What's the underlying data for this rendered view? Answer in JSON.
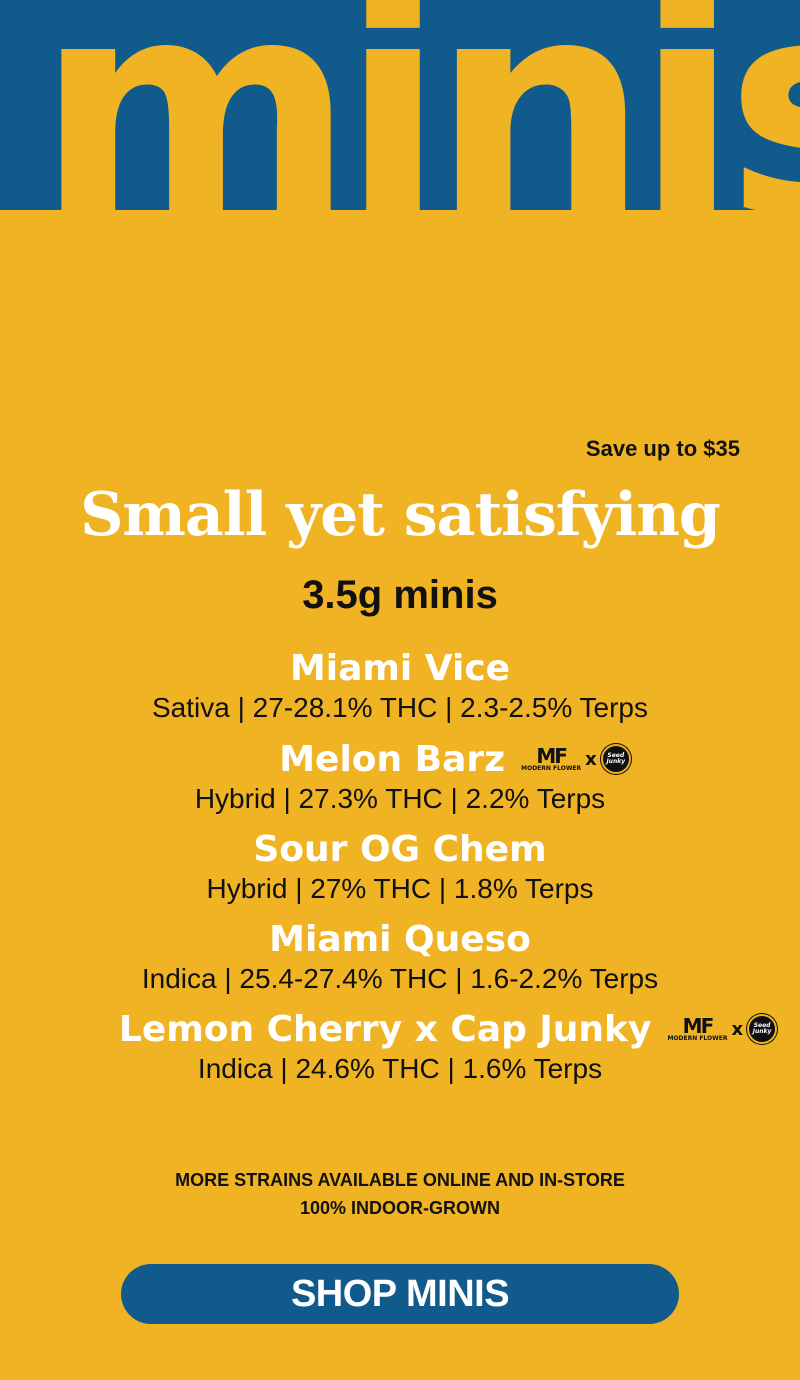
{
  "colors": {
    "background": "#F0B323",
    "accent": "#115B8C",
    "text": "#111111",
    "highlight": "#FFFFFF"
  },
  "hero": {
    "word": "minis"
  },
  "promo": {
    "save": "Save up to $35",
    "headline": "Small yet satisfying",
    "subhead": "3.5g minis"
  },
  "strains": [
    {
      "name": "Miami Vice",
      "info": "Sativa | 27-28.1% THC | 2.3-2.5% Terps",
      "collab": false
    },
    {
      "name": "Melon Barz",
      "info": "Hybrid | 27.3% THC | 2.2% Terps",
      "collab": true
    },
    {
      "name": "Sour OG Chem",
      "info": "Hybrid | 27% THC | 1.8% Terps",
      "collab": false
    },
    {
      "name": "Miami Queso",
      "info": "Indica | 25.4-27.4% THC | 1.6-2.2% Terps",
      "collab": false
    },
    {
      "name": "Lemon Cherry x Cap Junky",
      "info": "Indica | 24.6% THC | 1.6% Terps",
      "collab": true
    }
  ],
  "collab_badge": {
    "mf": "MF",
    "mf_sub": "MODERN FLOWER",
    "x": "x",
    "seed": "Seed Junky",
    "icons": [
      "modern-flower-logo-icon",
      "seed-junky-logo-icon"
    ]
  },
  "notes": {
    "line1": "MORE STRAINS AVAILABLE ONLINE AND IN-STORE",
    "line2": "100% INDOOR-GROWN"
  },
  "cta": {
    "label": "SHOP MINIS"
  }
}
